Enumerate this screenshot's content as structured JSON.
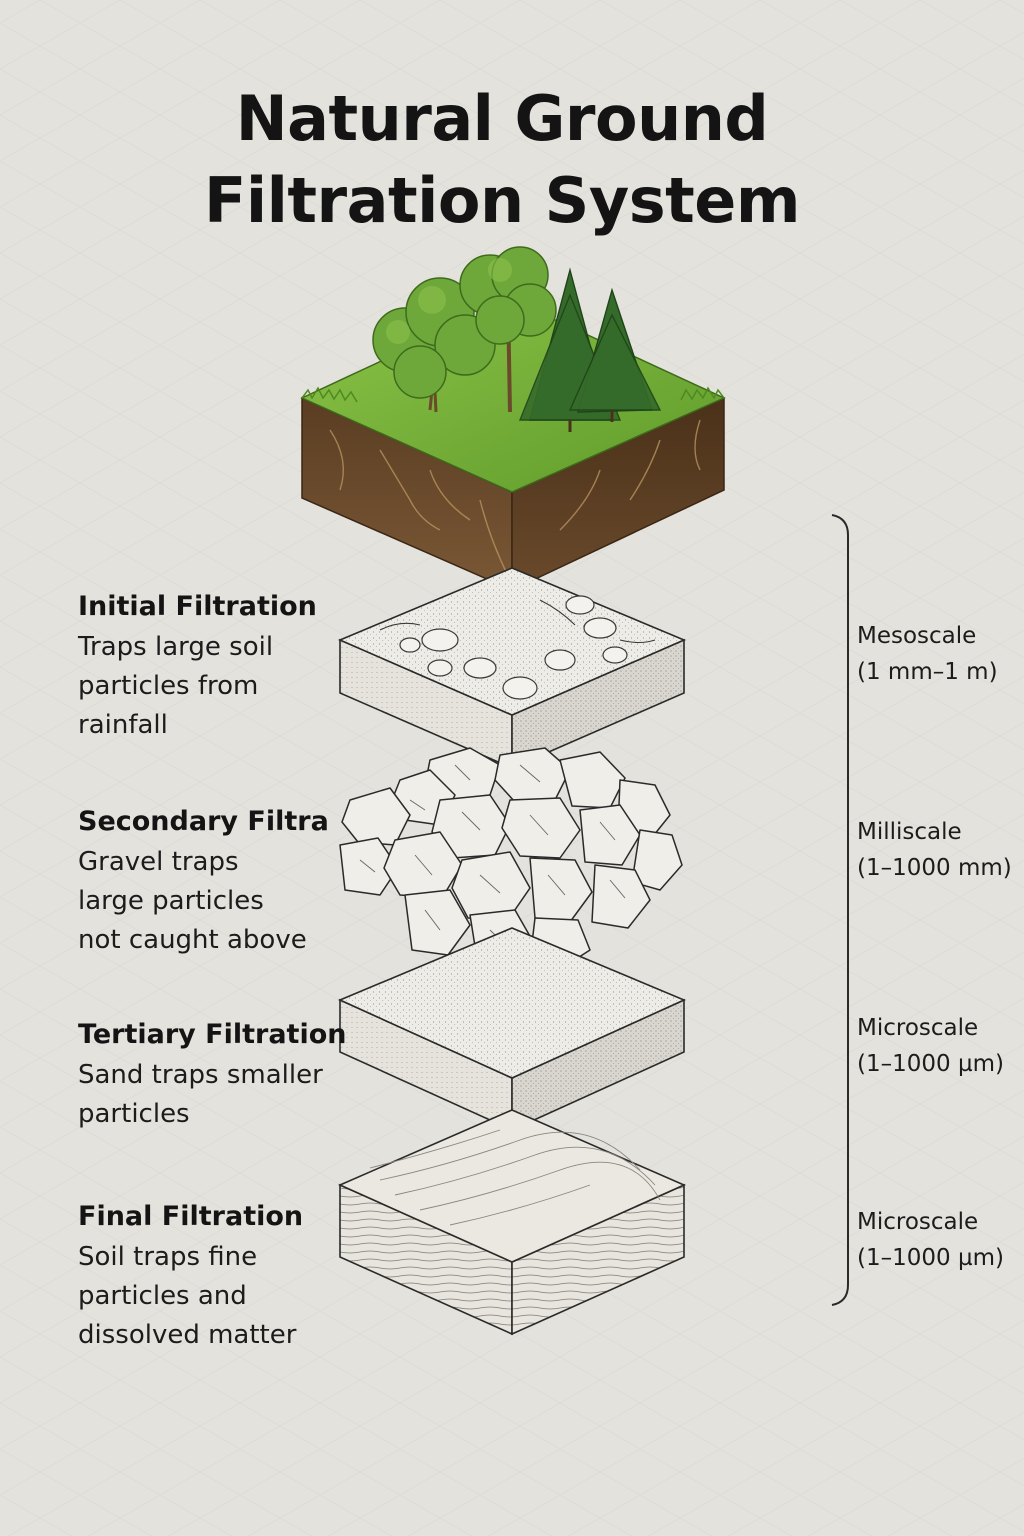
{
  "title": {
    "line1": "Natural Ground",
    "line2": "Filtration System"
  },
  "layers": [
    {
      "name": "Initial Filtration",
      "desc": [
        "Traps large soil",
        "particles from",
        "rainfall"
      ]
    },
    {
      "name": "Secondary Filtra",
      "desc": [
        "Gravel traps",
        "large particles",
        "not caught above"
      ]
    },
    {
      "name": "Tertiary Filtration",
      "desc": [
        "Sand traps smaller",
        "particles"
      ]
    },
    {
      "name": "Final Filtration",
      "desc": [
        "Soil traps fine",
        "particles and",
        "dissolved matter"
      ]
    }
  ],
  "scales": [
    {
      "name": "Mesoscale",
      "range": "(1 mm–1 m)"
    },
    {
      "name": "Milliscale",
      "range": "(1–1000 mm)"
    },
    {
      "name": "Microscale",
      "range": "(1–1000 µm)"
    },
    {
      "name": "Microscale",
      "range": "(1–1000 µm)"
    }
  ],
  "colors": {
    "background": "#e4e2dd",
    "grass": "#7bb23a",
    "soil": "#6b4a2b",
    "stone": "#f1efea",
    "line": "#2a2a2a"
  }
}
